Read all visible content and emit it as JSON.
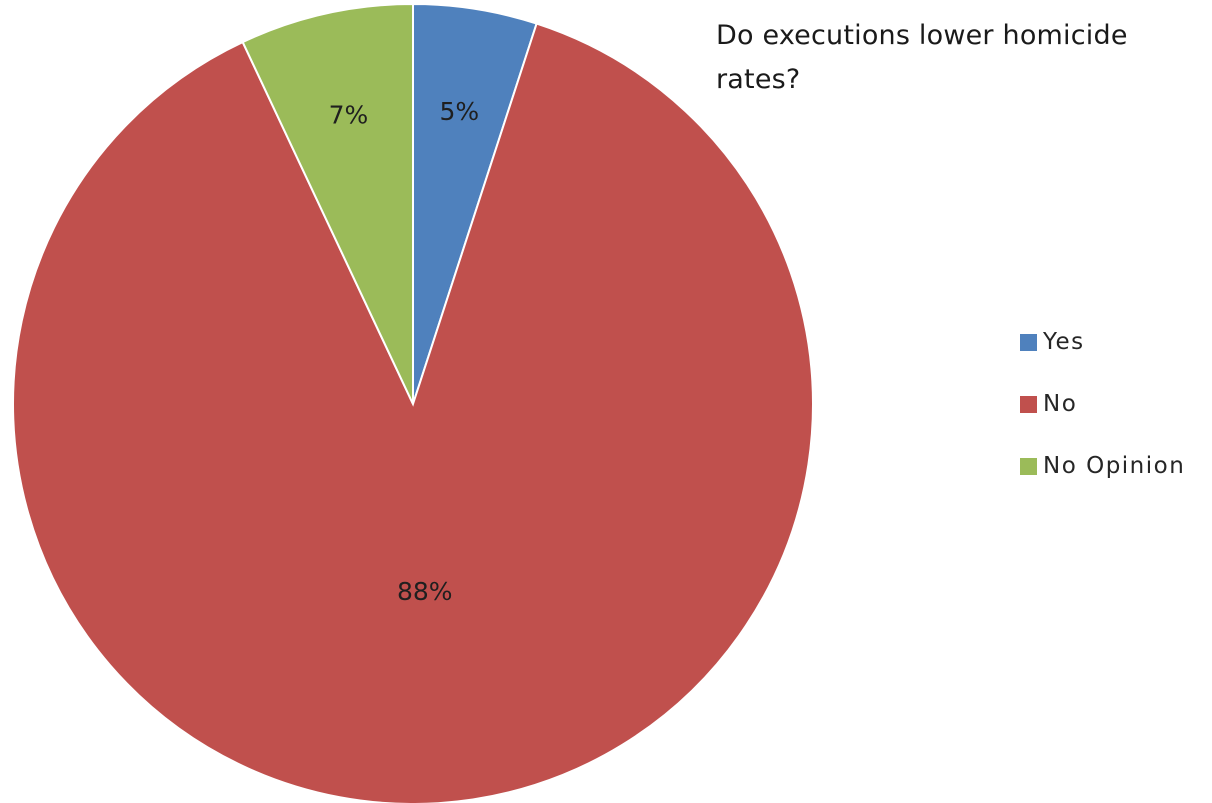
{
  "chart_data": {
    "type": "pie",
    "title": "Do executions lower homicide rates?",
    "categories": [
      "Yes",
      "No",
      "No Opinion"
    ],
    "values": [
      5,
      88,
      7
    ],
    "labels": [
      "5%",
      "88%",
      "7%"
    ],
    "unit": "%",
    "colors": [
      "#4f81bd",
      "#c0504d",
      "#9bbb59"
    ],
    "start_angle": "12 o'clock",
    "direction": "clockwise",
    "legend_position": "right",
    "data_labels": "inside"
  }
}
